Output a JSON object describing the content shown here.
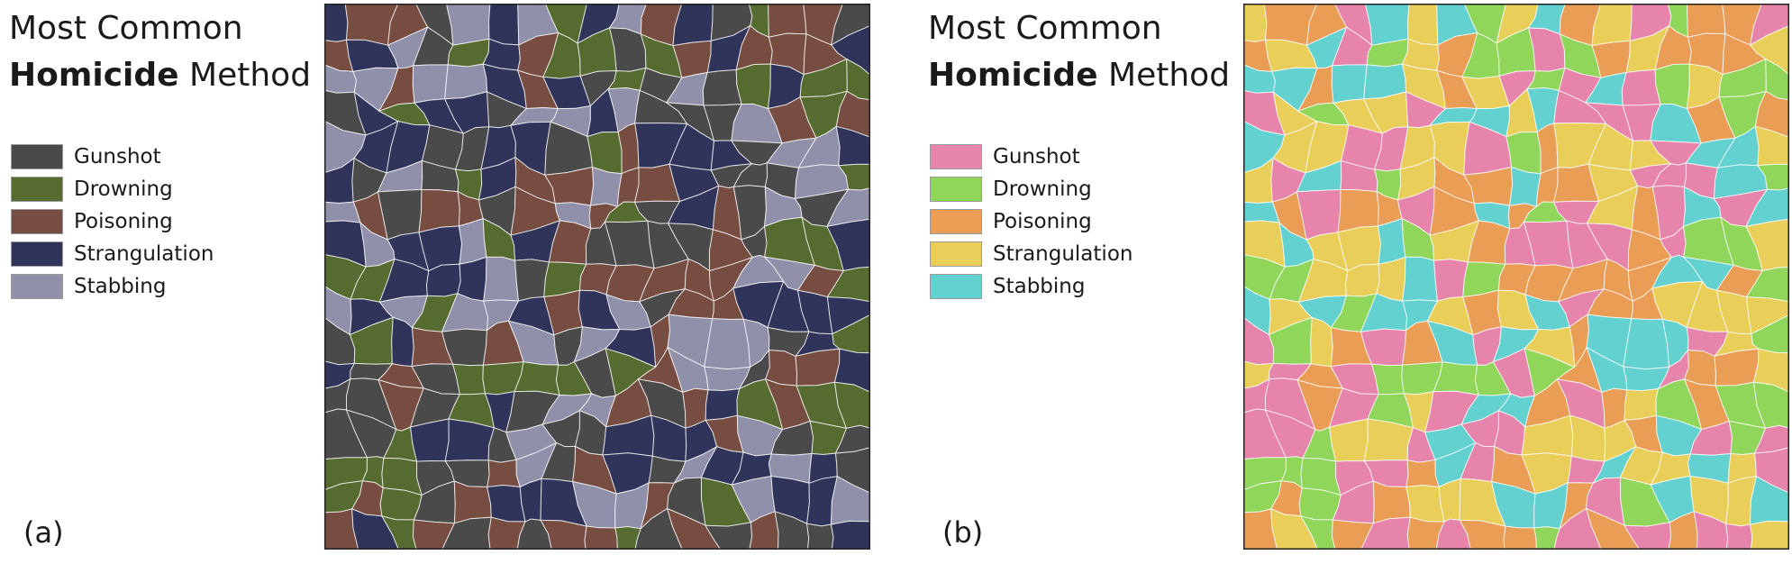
{
  "panels": [
    {
      "label": "(a)",
      "title_line1": "Most Common",
      "title_bold": "Homicide",
      "title_rest": " Method",
      "legend": [
        {
          "label": "Gunshot",
          "color": "#4a4a4a"
        },
        {
          "label": "Drowning",
          "color": "#556b2f"
        },
        {
          "label": "Poisoning",
          "color": "#774d42"
        },
        {
          "label": "Strangulation",
          "color": "#30345a"
        },
        {
          "label": "Stabbing",
          "color": "#9090ab"
        }
      ]
    },
    {
      "label": "(b)",
      "title_line1": "Most Common",
      "title_bold": "Homicide",
      "title_rest": " Method",
      "legend": [
        {
          "label": "Gunshot",
          "color": "#e784ac"
        },
        {
          "label": "Drowning",
          "color": "#8fd65a"
        },
        {
          "label": "Poisoning",
          "color": "#ea9d55"
        },
        {
          "label": "Strangulation",
          "color": "#e9cf5a"
        },
        {
          "label": "Stabbing",
          "color": "#62d1cf"
        }
      ]
    }
  ]
}
